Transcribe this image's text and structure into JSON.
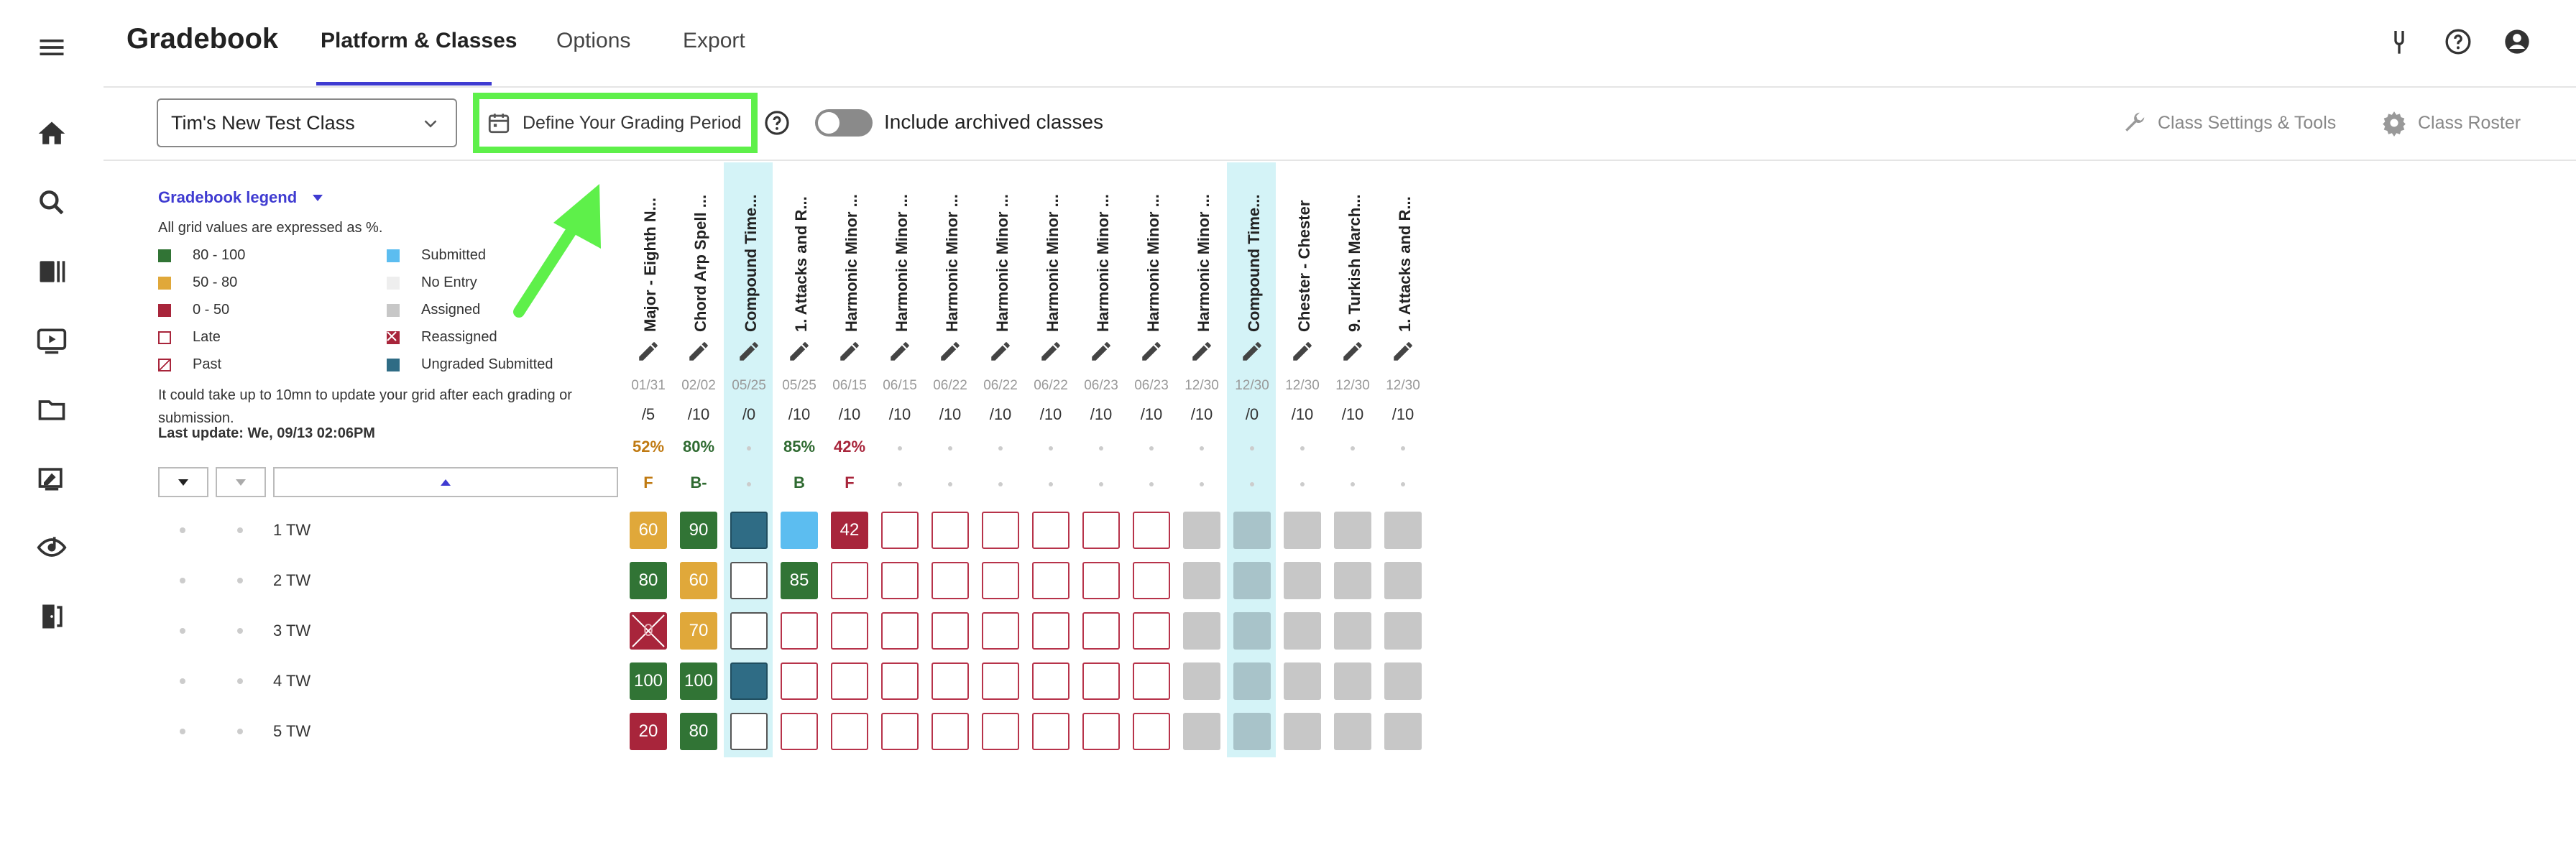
{
  "header": {
    "title": "Gradebook",
    "tabs": [
      {
        "label": "Platform & Classes",
        "active": true
      },
      {
        "label": "Options",
        "active": false
      },
      {
        "label": "Export",
        "active": false
      }
    ],
    "icons": [
      "tuning-fork-icon",
      "help-icon",
      "account-icon"
    ]
  },
  "rail": {
    "icons": [
      "menu-icon",
      "home-icon",
      "search-icon",
      "library-icon",
      "video-icon",
      "folder-icon",
      "assignment-icon",
      "listen-icon",
      "exit-icon"
    ]
  },
  "toolbar": {
    "class_select": "Tim's New Test Class",
    "grading_period": "Define Your Grading Period",
    "archived_label": "Include archived classes",
    "archived_on": false,
    "settings_label": "Class Settings & Tools",
    "roster_label": "Class Roster"
  },
  "legend": {
    "title": "Gradebook legend",
    "note": "All grid values are expressed as %.",
    "items": [
      {
        "label": "80 - 100",
        "color": "#317435"
      },
      {
        "label": "50 - 80",
        "color": "#e0a83a"
      },
      {
        "label": "0 - 50",
        "color": "#a8253b"
      },
      {
        "label": "Late",
        "color": "#ffffff"
      },
      {
        "label": "Past",
        "color": "#ffffff"
      },
      {
        "label": "Submitted",
        "color": "#5cbdf0"
      },
      {
        "label": "No Entry",
        "color": "#eeeeee"
      },
      {
        "label": "Assigned",
        "color": "#c7c7c7"
      },
      {
        "label": "Reassigned",
        "color": "#a8253b"
      },
      {
        "label": "Ungraded Submitted",
        "color": "#2f6c85"
      }
    ],
    "info": "It could take up to 10mn to update your grid after each grading or submission.",
    "last_update": "Last update: We, 09/13 02:06PM"
  },
  "students": [
    "1 TW",
    "2 TW",
    "3 TW",
    "4 TW",
    "5 TW"
  ],
  "columns": [
    {
      "title": "Major - Eighth N...",
      "date": "01/31",
      "max": "/5",
      "pct": "52%",
      "grade": "F",
      "color": "#c07a12",
      "hl": false
    },
    {
      "title": "Chord Arp Spell ...",
      "date": "02/02",
      "max": "/10",
      "pct": "80%",
      "grade": "B-",
      "color": "#2f6a31",
      "hl": false
    },
    {
      "title": "Compound Time...",
      "date": "05/25",
      "max": "/0",
      "pct": "",
      "grade": "",
      "color": "#333333",
      "hl": true
    },
    {
      "title": "1. Attacks and R...",
      "date": "05/25",
      "max": "/10",
      "pct": "85%",
      "grade": "B",
      "color": "#2f6a31",
      "hl": false
    },
    {
      "title": "Harmonic Minor ...",
      "date": "06/15",
      "max": "/10",
      "pct": "42%",
      "grade": "F",
      "color": "#a8253b",
      "hl": false
    },
    {
      "title": "Harmonic Minor ...",
      "date": "06/15",
      "max": "/10",
      "pct": "",
      "grade": "",
      "color": "#333333",
      "hl": false
    },
    {
      "title": "Harmonic Minor ...",
      "date": "06/22",
      "max": "/10",
      "pct": "",
      "grade": "",
      "color": "#333333",
      "hl": false
    },
    {
      "title": "Harmonic Minor ...",
      "date": "06/22",
      "max": "/10",
      "pct": "",
      "grade": "",
      "color": "#333333",
      "hl": false
    },
    {
      "title": "Harmonic Minor ...",
      "date": "06/22",
      "max": "/10",
      "pct": "",
      "grade": "",
      "color": "#333333",
      "hl": false
    },
    {
      "title": "Harmonic Minor ...",
      "date": "06/23",
      "max": "/10",
      "pct": "",
      "grade": "",
      "color": "#333333",
      "hl": false
    },
    {
      "title": "Harmonic Minor ...",
      "date": "06/23",
      "max": "/10",
      "pct": "",
      "grade": "",
      "color": "#333333",
      "hl": false
    },
    {
      "title": "Harmonic Minor ...",
      "date": "12/30",
      "max": "/10",
      "pct": "",
      "grade": "",
      "color": "#333333",
      "hl": false
    },
    {
      "title": "Compound Time...",
      "date": "12/30",
      "max": "/0",
      "pct": "",
      "grade": "",
      "color": "#333333",
      "hl": true
    },
    {
      "title": "Chester - Chester",
      "date": "12/30",
      "max": "/10",
      "pct": "",
      "grade": "",
      "color": "#333333",
      "hl": false
    },
    {
      "title": "9. Turkish March...",
      "date": "12/30",
      "max": "/10",
      "pct": "",
      "grade": "",
      "color": "#333333",
      "hl": false
    },
    {
      "title": "1. Attacks and R...",
      "date": "12/30",
      "max": "/10",
      "pct": "",
      "grade": "",
      "color": "#333333",
      "hl": false
    }
  ],
  "grid": [
    [
      {
        "t": "yellow",
        "v": "60"
      },
      {
        "t": "green",
        "v": "90"
      },
      {
        "t": "teal",
        "v": ""
      },
      {
        "t": "blue",
        "v": ""
      },
      {
        "t": "red",
        "v": "42"
      },
      {
        "t": "late",
        "v": ""
      },
      {
        "t": "late",
        "v": ""
      },
      {
        "t": "late",
        "v": ""
      },
      {
        "t": "late",
        "v": ""
      },
      {
        "t": "late",
        "v": ""
      },
      {
        "t": "late",
        "v": ""
      },
      {
        "t": "gray",
        "v": ""
      },
      {
        "t": "grayhl",
        "v": ""
      },
      {
        "t": "gray",
        "v": ""
      },
      {
        "t": "gray",
        "v": ""
      },
      {
        "t": "gray",
        "v": ""
      }
    ],
    [
      {
        "t": "green",
        "v": "80"
      },
      {
        "t": "yellow",
        "v": "60"
      },
      {
        "t": "emptyhl",
        "v": ""
      },
      {
        "t": "green",
        "v": "85"
      },
      {
        "t": "late",
        "v": ""
      },
      {
        "t": "late",
        "v": ""
      },
      {
        "t": "late",
        "v": ""
      },
      {
        "t": "late",
        "v": ""
      },
      {
        "t": "late",
        "v": ""
      },
      {
        "t": "late",
        "v": ""
      },
      {
        "t": "late",
        "v": ""
      },
      {
        "t": "gray",
        "v": ""
      },
      {
        "t": "grayhl",
        "v": ""
      },
      {
        "t": "gray",
        "v": ""
      },
      {
        "t": "gray",
        "v": ""
      },
      {
        "t": "gray",
        "v": ""
      }
    ],
    [
      {
        "t": "reass",
        "v": "0"
      },
      {
        "t": "yellow",
        "v": "70"
      },
      {
        "t": "emptyhl",
        "v": ""
      },
      {
        "t": "late",
        "v": ""
      },
      {
        "t": "late",
        "v": ""
      },
      {
        "t": "late",
        "v": ""
      },
      {
        "t": "late",
        "v": ""
      },
      {
        "t": "late",
        "v": ""
      },
      {
        "t": "late",
        "v": ""
      },
      {
        "t": "late",
        "v": ""
      },
      {
        "t": "late",
        "v": ""
      },
      {
        "t": "gray",
        "v": ""
      },
      {
        "t": "grayhl",
        "v": ""
      },
      {
        "t": "gray",
        "v": ""
      },
      {
        "t": "gray",
        "v": ""
      },
      {
        "t": "gray",
        "v": ""
      }
    ],
    [
      {
        "t": "green",
        "v": "100"
      },
      {
        "t": "green",
        "v": "100"
      },
      {
        "t": "teal",
        "v": ""
      },
      {
        "t": "late",
        "v": ""
      },
      {
        "t": "late",
        "v": ""
      },
      {
        "t": "late",
        "v": ""
      },
      {
        "t": "late",
        "v": ""
      },
      {
        "t": "late",
        "v": ""
      },
      {
        "t": "late",
        "v": ""
      },
      {
        "t": "late",
        "v": ""
      },
      {
        "t": "late",
        "v": ""
      },
      {
        "t": "gray",
        "v": ""
      },
      {
        "t": "grayhl",
        "v": ""
      },
      {
        "t": "gray",
        "v": ""
      },
      {
        "t": "gray",
        "v": ""
      },
      {
        "t": "gray",
        "v": ""
      }
    ],
    [
      {
        "t": "red",
        "v": "20"
      },
      {
        "t": "green",
        "v": "80"
      },
      {
        "t": "emptyhl",
        "v": ""
      },
      {
        "t": "late",
        "v": ""
      },
      {
        "t": "late",
        "v": ""
      },
      {
        "t": "late",
        "v": ""
      },
      {
        "t": "late",
        "v": ""
      },
      {
        "t": "late",
        "v": ""
      },
      {
        "t": "late",
        "v": ""
      },
      {
        "t": "late",
        "v": ""
      },
      {
        "t": "late",
        "v": ""
      },
      {
        "t": "gray",
        "v": ""
      },
      {
        "t": "grayhl",
        "v": ""
      },
      {
        "t": "gray",
        "v": ""
      },
      {
        "t": "gray",
        "v": ""
      },
      {
        "t": "gray",
        "v": ""
      }
    ]
  ]
}
